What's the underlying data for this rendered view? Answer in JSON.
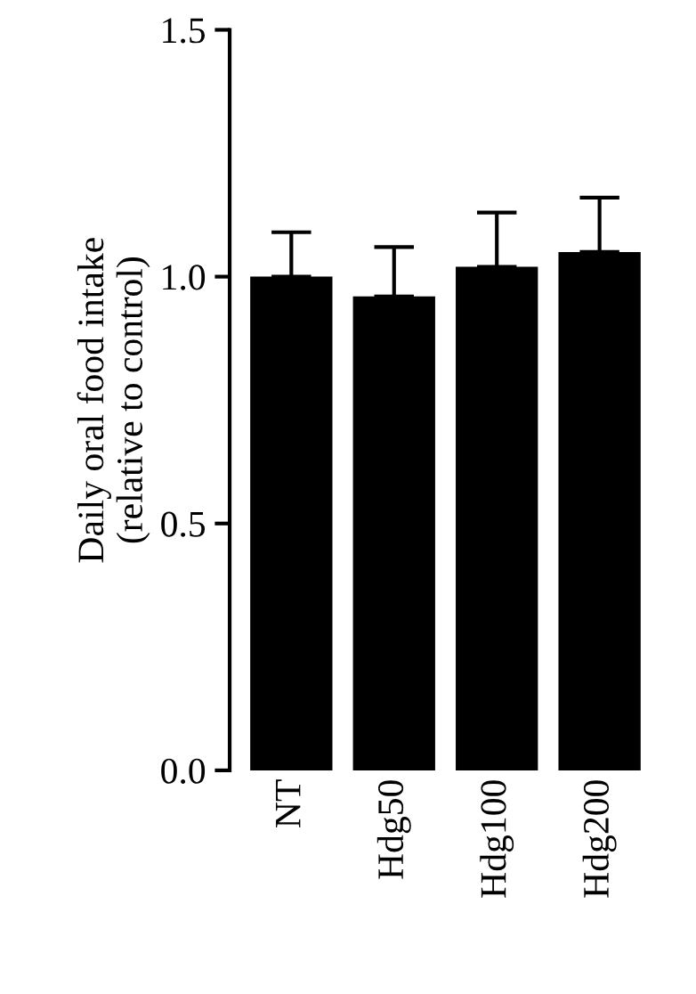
{
  "chart_data": {
    "type": "bar",
    "ylabel": "Daily oral food intake\n(relative to control)",
    "categories": [
      "NT",
      "Hdg50",
      "Hdg100",
      "Hdg200"
    ],
    "values": [
      1.0,
      0.96,
      1.02,
      1.05
    ],
    "errors": [
      [
        1.0,
        1.09
      ],
      [
        0.96,
        1.06
      ],
      [
        1.02,
        1.13
      ],
      [
        1.05,
        1.16
      ]
    ],
    "color": "#000000",
    "ylim": [
      0,
      1.5
    ],
    "yticks": [
      {
        "value": 0,
        "label": "0.0"
      },
      0.5,
      {
        "value": 1,
        "label": "1.0"
      },
      1.5
    ],
    "grid": false,
    "legend": false
  }
}
